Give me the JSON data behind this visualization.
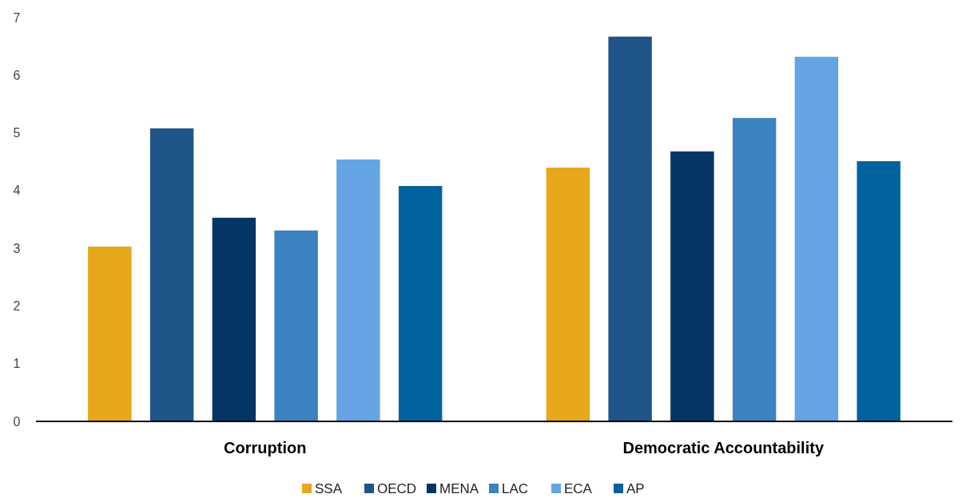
{
  "chart_data": {
    "type": "bar",
    "categories": [
      "Corruption",
      "Democratic Accountability"
    ],
    "series": [
      {
        "name": "SSA",
        "color": "#e6a71a",
        "values": [
          3.03,
          4.4
        ]
      },
      {
        "name": "OECD",
        "color": "#1f5489",
        "values": [
          5.08,
          6.67
        ]
      },
      {
        "name": "MENA",
        "color": "#053564",
        "values": [
          3.53,
          4.68
        ]
      },
      {
        "name": "LAC",
        "color": "#3c82c1",
        "values": [
          3.31,
          5.26
        ]
      },
      {
        "name": "ECA",
        "color": "#64a4e2",
        "values": [
          4.54,
          6.32
        ]
      },
      {
        "name": "AP",
        "color": "#00639e",
        "values": [
          4.08,
          4.51
        ]
      }
    ],
    "ylim": [
      0,
      7
    ],
    "yticks": [
      0,
      1,
      2,
      3,
      4,
      5,
      6,
      7
    ],
    "grid": false,
    "legend": "bottom"
  }
}
